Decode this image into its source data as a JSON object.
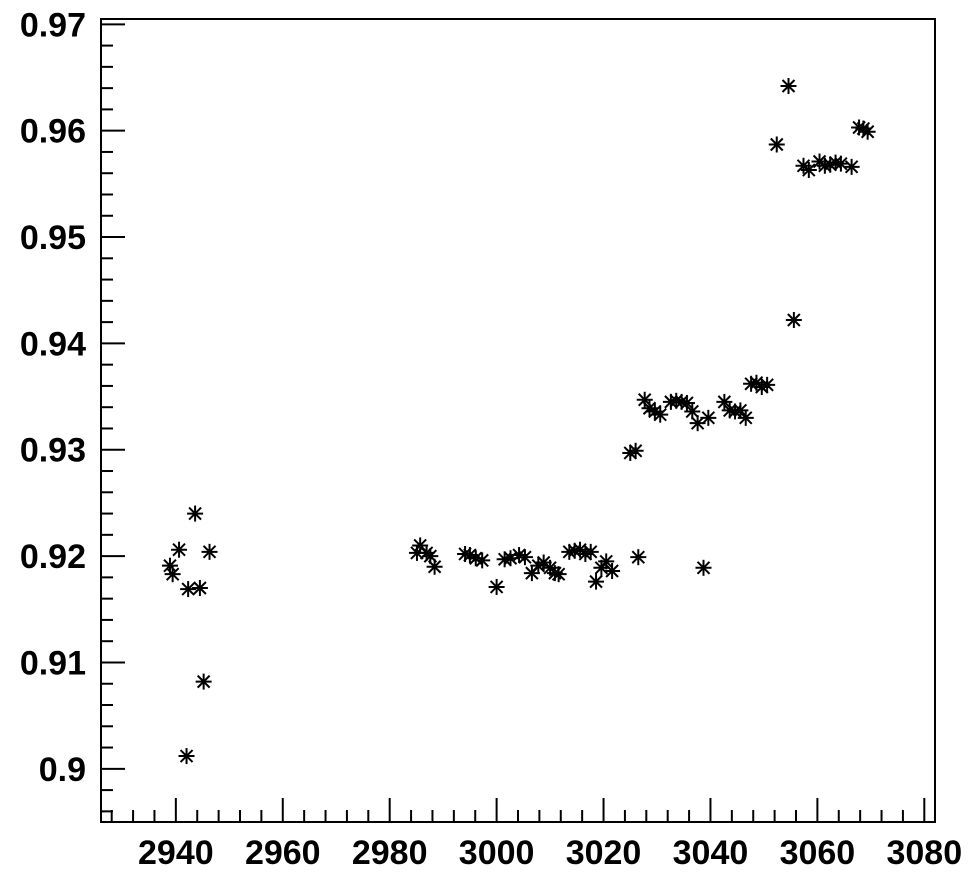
{
  "chart_data": {
    "type": "scatter",
    "marker": "asterisk",
    "color": "#000000",
    "grid": false,
    "xlim": [
      2926,
      3082
    ],
    "ylim": [
      0.895,
      0.9705
    ],
    "x_ticks": [
      2940,
      2960,
      2980,
      3000,
      3020,
      3040,
      3060,
      3080
    ],
    "y_ticks": [
      0.9,
      0.91,
      0.92,
      0.93,
      0.94,
      0.95,
      0.96,
      0.97
    ],
    "x_tick_labels": [
      "2940",
      "2960",
      "2980",
      "3000",
      "3020",
      "3040",
      "3060",
      "3080"
    ],
    "y_tick_labels": [
      "0.9",
      "0.91",
      "0.92",
      "0.93",
      "0.94",
      "0.95",
      "0.96",
      "0.97"
    ],
    "points": [
      [
        2938.9,
        0.9191
      ],
      [
        2939.4,
        0.9183
      ],
      [
        2940.6,
        0.9206
      ],
      [
        2942.0,
        0.9012
      ],
      [
        2942.3,
        0.9169
      ],
      [
        2943.6,
        0.924
      ],
      [
        2944.5,
        0.917
      ],
      [
        2945.2,
        0.9082
      ],
      [
        2946.3,
        0.9204
      ],
      [
        2985.1,
        0.9203
      ],
      [
        2985.7,
        0.921
      ],
      [
        2986.9,
        0.9203
      ],
      [
        2987.6,
        0.92
      ],
      [
        2988.4,
        0.919
      ],
      [
        2994.1,
        0.9202
      ],
      [
        2995.0,
        0.9201
      ],
      [
        2996.1,
        0.9198
      ],
      [
        2997.3,
        0.9196
      ],
      [
        3000.0,
        0.9171
      ],
      [
        3001.5,
        0.9197
      ],
      [
        3002.6,
        0.9198
      ],
      [
        3004.2,
        0.9201
      ],
      [
        3005.3,
        0.9199
      ],
      [
        3006.6,
        0.9184
      ],
      [
        3007.8,
        0.9191
      ],
      [
        3008.8,
        0.9194
      ],
      [
        3010.0,
        0.9189
      ],
      [
        3010.9,
        0.9184
      ],
      [
        3011.6,
        0.9183
      ],
      [
        3013.6,
        0.9204
      ],
      [
        3014.6,
        0.9205
      ],
      [
        3015.6,
        0.9206
      ],
      [
        3016.6,
        0.9202
      ],
      [
        3017.6,
        0.9204
      ],
      [
        3018.6,
        0.9176
      ],
      [
        3019.6,
        0.9189
      ],
      [
        3020.5,
        0.9195
      ],
      [
        3021.6,
        0.9186
      ],
      [
        3025.0,
        0.9297
      ],
      [
        3026.0,
        0.9299
      ],
      [
        3026.5,
        0.9199
      ],
      [
        3027.7,
        0.9347
      ],
      [
        3028.6,
        0.9339
      ],
      [
        3029.6,
        0.9336
      ],
      [
        3030.6,
        0.9333
      ],
      [
        3032.6,
        0.9345
      ],
      [
        3033.6,
        0.9346
      ],
      [
        3034.6,
        0.9345
      ],
      [
        3035.6,
        0.9344
      ],
      [
        3036.6,
        0.9336
      ],
      [
        3037.6,
        0.9325
      ],
      [
        3038.7,
        0.9189
      ],
      [
        3039.6,
        0.933
      ],
      [
        3042.6,
        0.9345
      ],
      [
        3043.6,
        0.9337
      ],
      [
        3044.6,
        0.9336
      ],
      [
        3045.6,
        0.9337
      ],
      [
        3046.6,
        0.933
      ],
      [
        3047.6,
        0.9362
      ],
      [
        3048.6,
        0.9363
      ],
      [
        3049.6,
        0.9359
      ],
      [
        3050.6,
        0.9361
      ],
      [
        3052.4,
        0.9587
      ],
      [
        3054.6,
        0.9642
      ],
      [
        3055.6,
        0.9422
      ],
      [
        3057.4,
        0.9567
      ],
      [
        3058.4,
        0.9563
      ],
      [
        3060.4,
        0.9571
      ],
      [
        3061.4,
        0.9567
      ],
      [
        3062.4,
        0.9568
      ],
      [
        3063.4,
        0.957
      ],
      [
        3064.4,
        0.9569
      ],
      [
        3066.4,
        0.9566
      ],
      [
        3067.8,
        0.9603
      ],
      [
        3068.6,
        0.9602
      ],
      [
        3069.4,
        0.9599
      ]
    ]
  }
}
